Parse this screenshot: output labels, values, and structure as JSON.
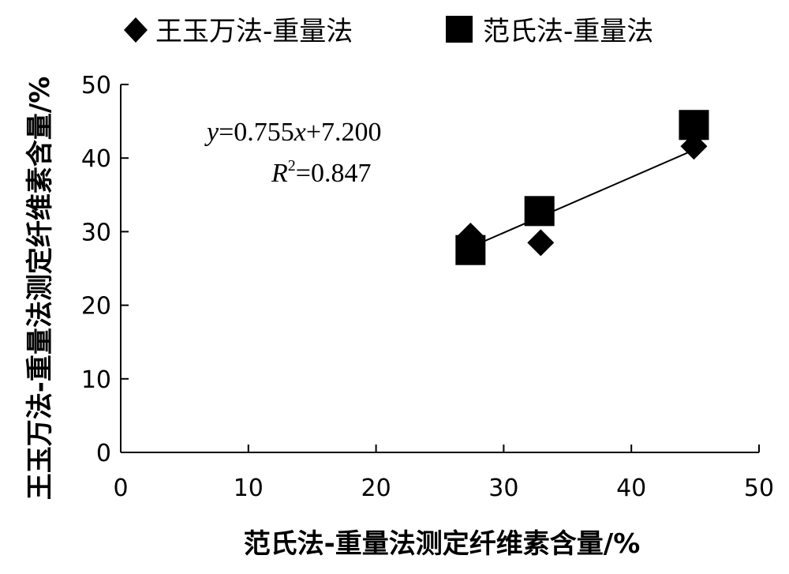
{
  "chart_data": {
    "type": "scatter",
    "xlabel": "范氏法-重量法测定纤维素含量/%",
    "ylabel": "王玉万法-重量法测定纤维素含量/%",
    "xlim": [
      0,
      50
    ],
    "ylim": [
      0,
      50
    ],
    "x_ticks": [
      "0",
      "10",
      "20",
      "30",
      "40",
      "50"
    ],
    "y_ticks": [
      "0",
      "10",
      "20",
      "30",
      "40",
      "50"
    ],
    "legend_position": "top",
    "series": [
      {
        "name": "王玉万法-重量法",
        "marker": "diamond",
        "color": "#000000",
        "points": [
          {
            "x": 27.4,
            "y": 29.4
          },
          {
            "x": 32.9,
            "y": 28.5
          },
          {
            "x": 44.9,
            "y": 41.6
          }
        ]
      },
      {
        "name": "范氏法-重量法",
        "marker": "square",
        "color": "#000000",
        "points": [
          {
            "x": 27.4,
            "y": 27.5
          },
          {
            "x": 32.8,
            "y": 32.8
          },
          {
            "x": 44.9,
            "y": 44.5
          }
        ]
      }
    ],
    "trendline": {
      "slope": 0.755,
      "intercept": 7.2,
      "x_range": [
        27.4,
        44.9
      ]
    },
    "annotation": {
      "equation_y": "y",
      "equation_rest": "=0.755",
      "equation_x": "x",
      "equation_tail": "+7.200",
      "r_symbol": "R",
      "r_exp": "2",
      "r_value": "=0.847"
    },
    "grid": false
  }
}
